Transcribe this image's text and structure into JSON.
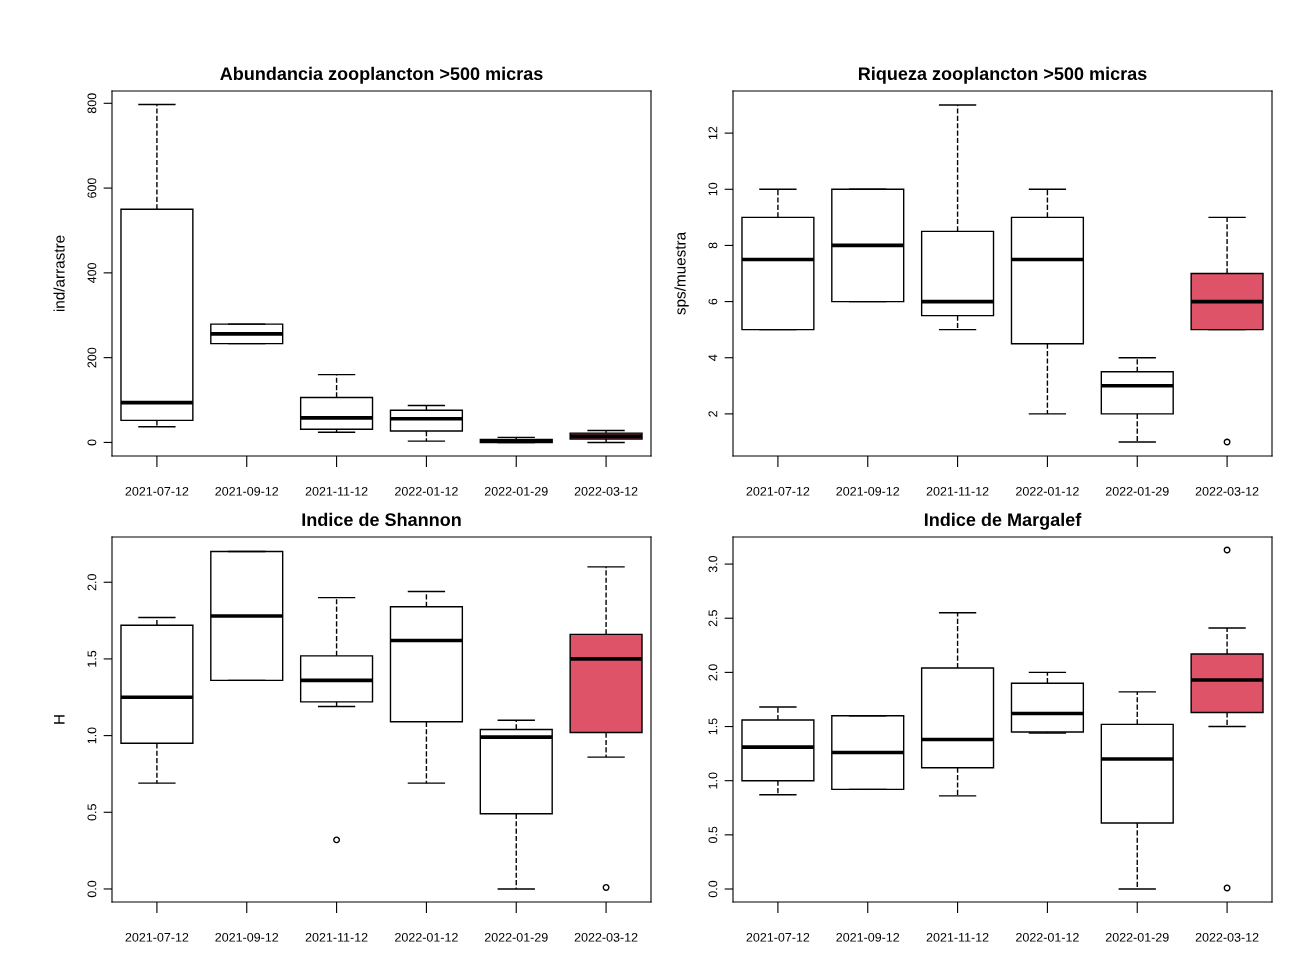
{
  "chart_data": [
    {
      "type": "box",
      "title": "Abundancia zooplancton >500 micras",
      "ylabel": "ind/arrastre",
      "categories": [
        "2021-07-12",
        "2021-09-12",
        "2021-11-12",
        "2022-01-12",
        "2022-01-29",
        "2022-03-12"
      ],
      "ylim": [
        -32,
        829
      ],
      "yticks": [
        0,
        200,
        400,
        600,
        800
      ],
      "grid": false,
      "colors": [
        "#ffffff",
        "#ffffff",
        "#ffffff",
        "#ffffff",
        "#ffffff",
        "#df5368"
      ],
      "boxes": [
        {
          "low": 37,
          "q1": 52,
          "median": 94,
          "q3": 550,
          "high": 797
        },
        {
          "low": 233,
          "q1": 233,
          "median": 256,
          "q3": 279,
          "high": 279
        },
        {
          "low": 24,
          "q1": 31,
          "median": 58,
          "q3": 106,
          "high": 160
        },
        {
          "low": 3,
          "q1": 27,
          "median": 56,
          "q3": 76,
          "high": 87
        },
        {
          "low": 0,
          "q1": 0,
          "median": 3,
          "q3": 7,
          "high": 12
        },
        {
          "low": 0,
          "q1": 8,
          "median": 15,
          "q3": 22,
          "high": 28
        }
      ]
    },
    {
      "type": "box",
      "title": "Riqueza zooplancton >500 micras",
      "ylabel": "sps/muestra",
      "categories": [
        "2021-07-12",
        "2021-09-12",
        "2021-11-12",
        "2022-01-12",
        "2022-01-29",
        "2022-03-12"
      ],
      "ylim": [
        0.5,
        13.5
      ],
      "yticks": [
        2,
        4,
        6,
        8,
        10,
        12
      ],
      "grid": false,
      "colors": [
        "#ffffff",
        "#ffffff",
        "#ffffff",
        "#ffffff",
        "#ffffff",
        "#df5368"
      ],
      "boxes": [
        {
          "low": 5,
          "q1": 5,
          "median": 7.5,
          "q3": 9,
          "high": 10
        },
        {
          "low": 6,
          "q1": 6,
          "median": 8,
          "q3": 10,
          "high": 10
        },
        {
          "low": 5,
          "q1": 5.5,
          "median": 6,
          "q3": 8.5,
          "high": 13
        },
        {
          "low": 2,
          "q1": 4.5,
          "median": 7.5,
          "q3": 9,
          "high": 10
        },
        {
          "low": 1,
          "q1": 2,
          "median": 3,
          "q3": 3.5,
          "high": 4
        },
        {
          "low": 5,
          "q1": 5,
          "median": 6,
          "q3": 7,
          "high": 9,
          "outliers": [
            1
          ]
        }
      ]
    },
    {
      "type": "box",
      "title": "Indice de Shannon",
      "ylabel": "H",
      "categories": [
        "2021-07-12",
        "2021-09-12",
        "2021-11-12",
        "2022-01-12",
        "2022-01-29",
        "2022-03-12"
      ],
      "ylim": [
        -0.085,
        2.295
      ],
      "yticks": [
        {
          "value": 0,
          "label": "0.0"
        },
        0.5,
        {
          "value": 1,
          "label": "1.0"
        },
        1.5,
        {
          "value": 2,
          "label": "2.0"
        }
      ],
      "grid": false,
      "colors": [
        "#ffffff",
        "#ffffff",
        "#ffffff",
        "#ffffff",
        "#ffffff",
        "#df5368"
      ],
      "boxes": [
        {
          "low": 0.69,
          "q1": 0.95,
          "median": 1.25,
          "q3": 1.72,
          "high": 1.77
        },
        {
          "low": 1.36,
          "q1": 1.36,
          "median": 1.78,
          "q3": 2.2,
          "high": 2.2
        },
        {
          "low": 1.19,
          "q1": 1.22,
          "median": 1.36,
          "q3": 1.52,
          "high": 1.9,
          "outliers": [
            0.32
          ]
        },
        {
          "low": 0.69,
          "q1": 1.09,
          "median": 1.62,
          "q3": 1.84,
          "high": 1.94
        },
        {
          "low": 0,
          "q1": 0.49,
          "median": 0.99,
          "q3": 1.04,
          "high": 1.1
        },
        {
          "low": 0.86,
          "q1": 1.02,
          "median": 1.5,
          "q3": 1.66,
          "high": 2.1,
          "outliers": [
            0.01
          ]
        }
      ]
    },
    {
      "type": "box",
      "title": "Indice de Margalef",
      "categories": [
        "2021-07-12",
        "2021-09-12",
        "2021-11-12",
        "2022-01-12",
        "2022-01-29",
        "2022-03-12"
      ],
      "ylim": [
        -0.12,
        3.25
      ],
      "yticks": [
        {
          "value": 0,
          "label": "0.0"
        },
        0.5,
        {
          "value": 1,
          "label": "1.0"
        },
        1.5,
        {
          "value": 2,
          "label": "2.0"
        },
        2.5,
        {
          "value": 3,
          "label": "3.0"
        }
      ],
      "grid": false,
      "colors": [
        "#ffffff",
        "#ffffff",
        "#ffffff",
        "#ffffff",
        "#ffffff",
        "#df5368"
      ],
      "boxes": [
        {
          "low": 0.87,
          "q1": 1.0,
          "median": 1.31,
          "q3": 1.56,
          "high": 1.68
        },
        {
          "low": 0.92,
          "q1": 0.92,
          "median": 1.26,
          "q3": 1.6,
          "high": 1.6
        },
        {
          "low": 0.86,
          "q1": 1.12,
          "median": 1.38,
          "q3": 2.04,
          "high": 2.55
        },
        {
          "low": 1.44,
          "q1": 1.45,
          "median": 1.62,
          "q3": 1.9,
          "high": 2.0
        },
        {
          "low": 0,
          "q1": 0.61,
          "median": 1.2,
          "q3": 1.52,
          "high": 1.82
        },
        {
          "low": 1.5,
          "q1": 1.63,
          "median": 1.93,
          "q3": 2.17,
          "high": 2.41,
          "outliers": [
            3.13,
            0.01
          ]
        }
      ]
    }
  ]
}
